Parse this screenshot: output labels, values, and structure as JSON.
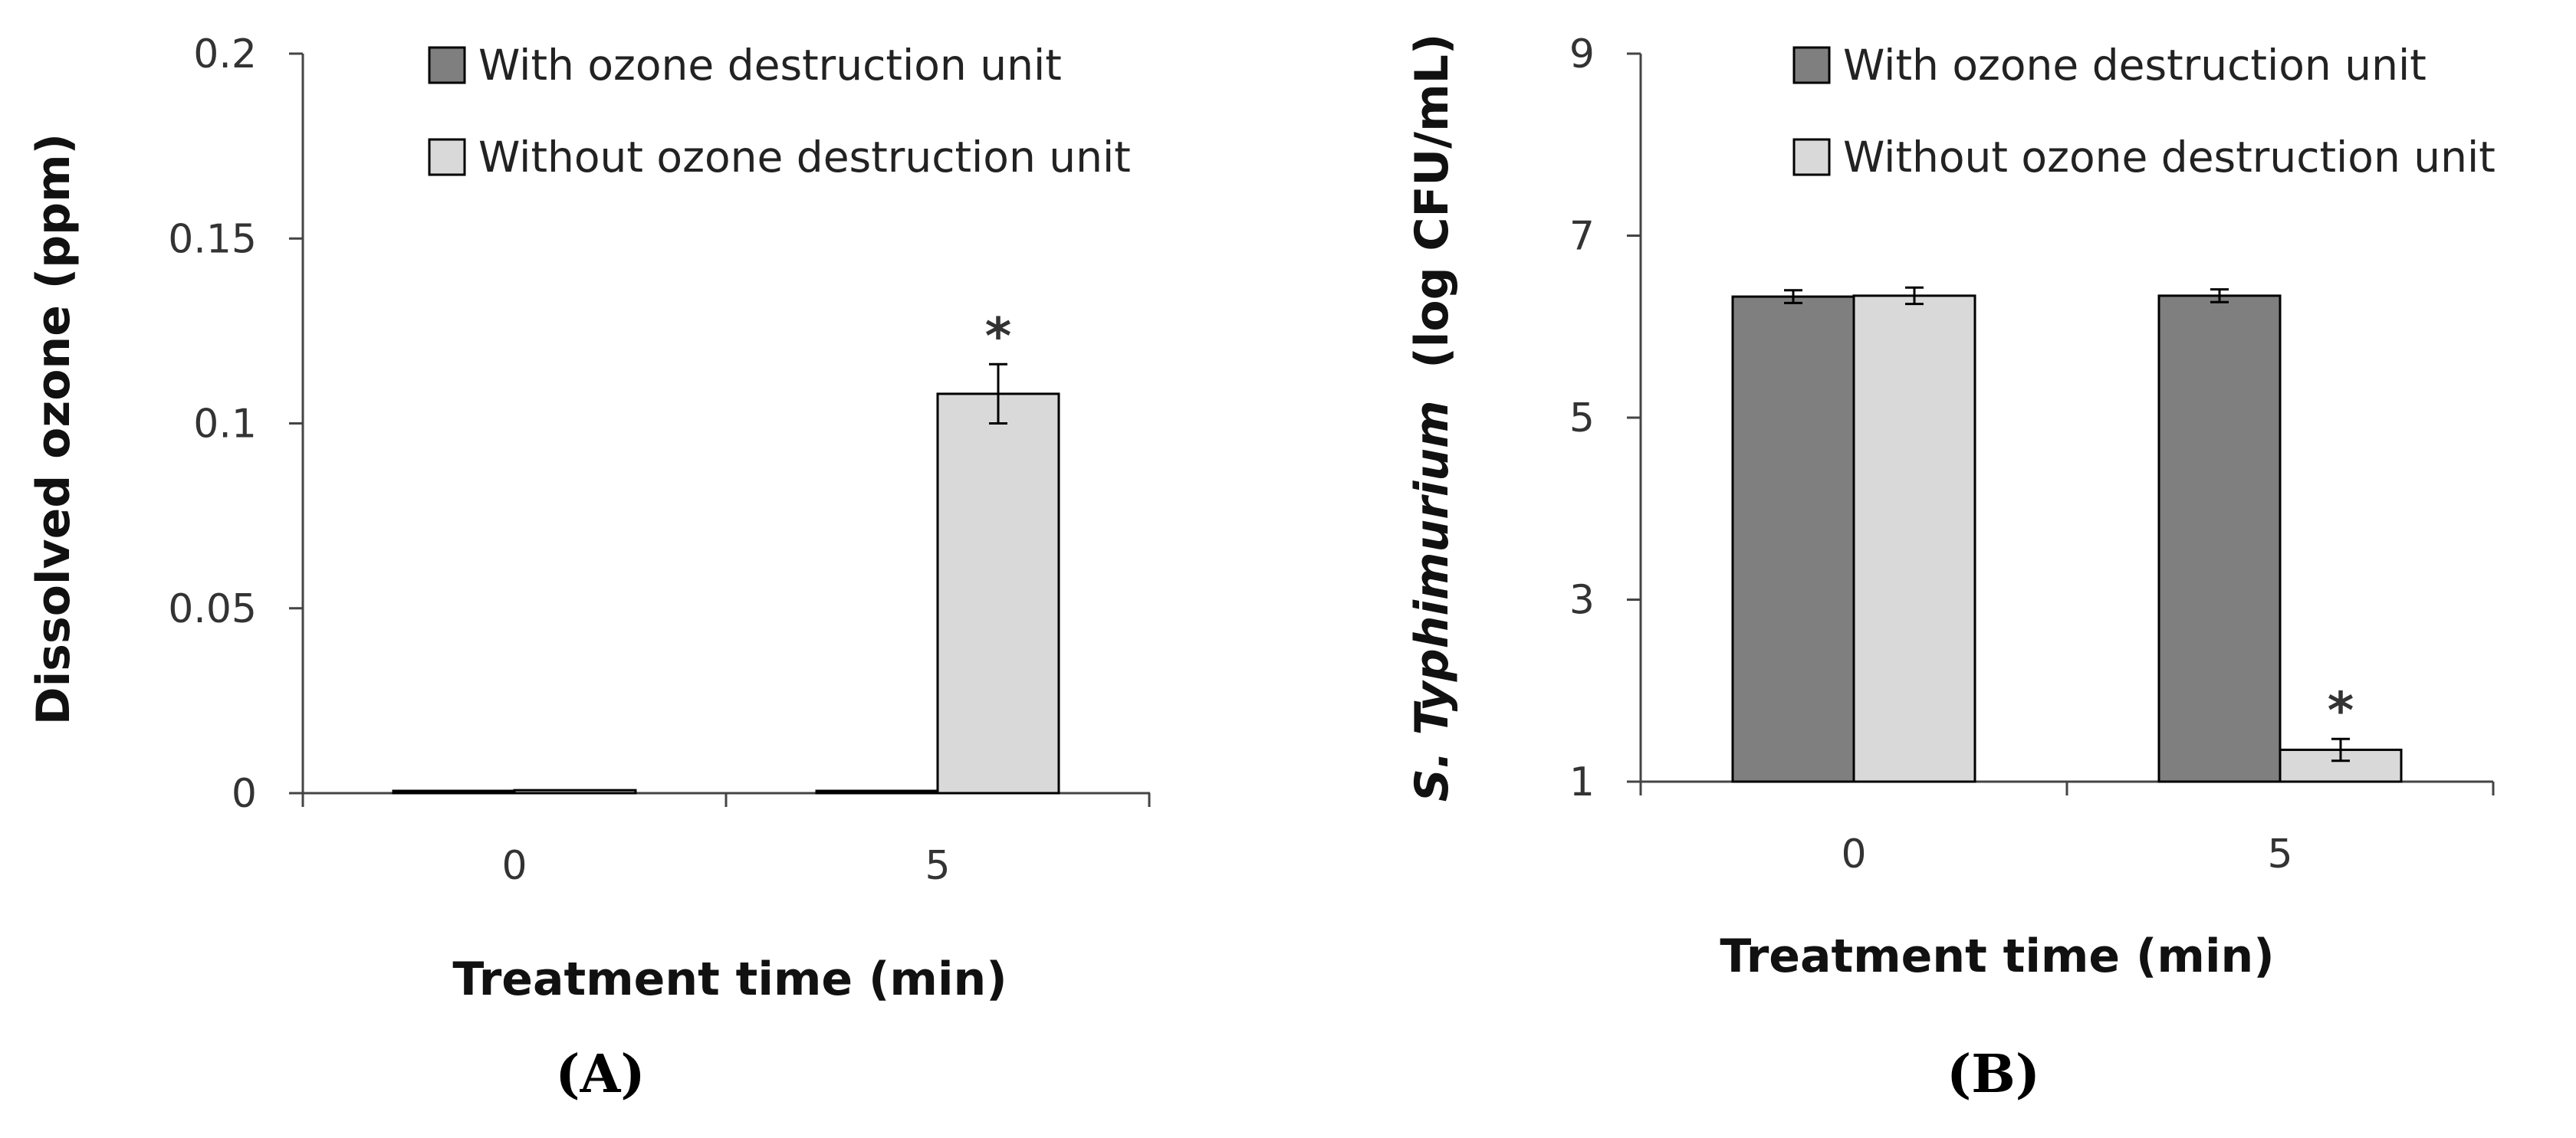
{
  "chart_data": [
    {
      "type": "bar",
      "panel_label": "A",
      "categories": [
        "0",
        "5"
      ],
      "series": [
        {
          "name": "With ozone destruction unit",
          "values": [
            0.0005,
            0.0005
          ],
          "errors": [
            0.0002,
            0.0002
          ],
          "color": "#7f7f7f"
        },
        {
          "name": "Without ozone destruction unit",
          "values": [
            0.0008,
            0.108
          ],
          "errors": [
            0.0003,
            0.008
          ],
          "color": "#d9d9d9"
        }
      ],
      "significance": [
        {
          "category": "5",
          "series": 1,
          "label": "*"
        }
      ],
      "xlabel": "Treatment time (min)",
      "ylabel": "Dissolved ozone (ppm)",
      "ylim": [
        0,
        0.2
      ],
      "yticks": [
        0,
        0.05,
        0.1,
        0.15,
        0.2
      ],
      "ytick_labels": [
        "0",
        "0.05",
        "0.1",
        "0.15",
        "0.2"
      ],
      "grid": false,
      "legend": "top"
    },
    {
      "type": "bar",
      "panel_label": "B",
      "categories": [
        "0",
        "5"
      ],
      "series": [
        {
          "name": "With ozone destruction unit",
          "values": [
            6.33,
            6.34
          ],
          "errors": [
            0.07,
            0.07
          ],
          "color": "#7f7f7f"
        },
        {
          "name": "Without ozone destruction unit",
          "values": [
            6.34,
            1.35
          ],
          "errors": [
            0.09,
            0.12
          ],
          "color": "#d9d9d9"
        }
      ],
      "significance": [
        {
          "category": "5",
          "series": 1,
          "label": "*"
        }
      ],
      "xlabel": "Treatment time (min)",
      "ylabel": "S. Typhimurium  (log CFU/mL)",
      "ylabel_italic_part": "S. Typhimurium",
      "ylabel_rest": "  (log CFU/mL)",
      "ylim": [
        1,
        9
      ],
      "yticks": [
        1,
        3,
        5,
        7,
        9
      ],
      "ytick_labels": [
        "1",
        "3",
        "5",
        "7",
        "9"
      ],
      "grid": false,
      "legend": "top"
    }
  ]
}
